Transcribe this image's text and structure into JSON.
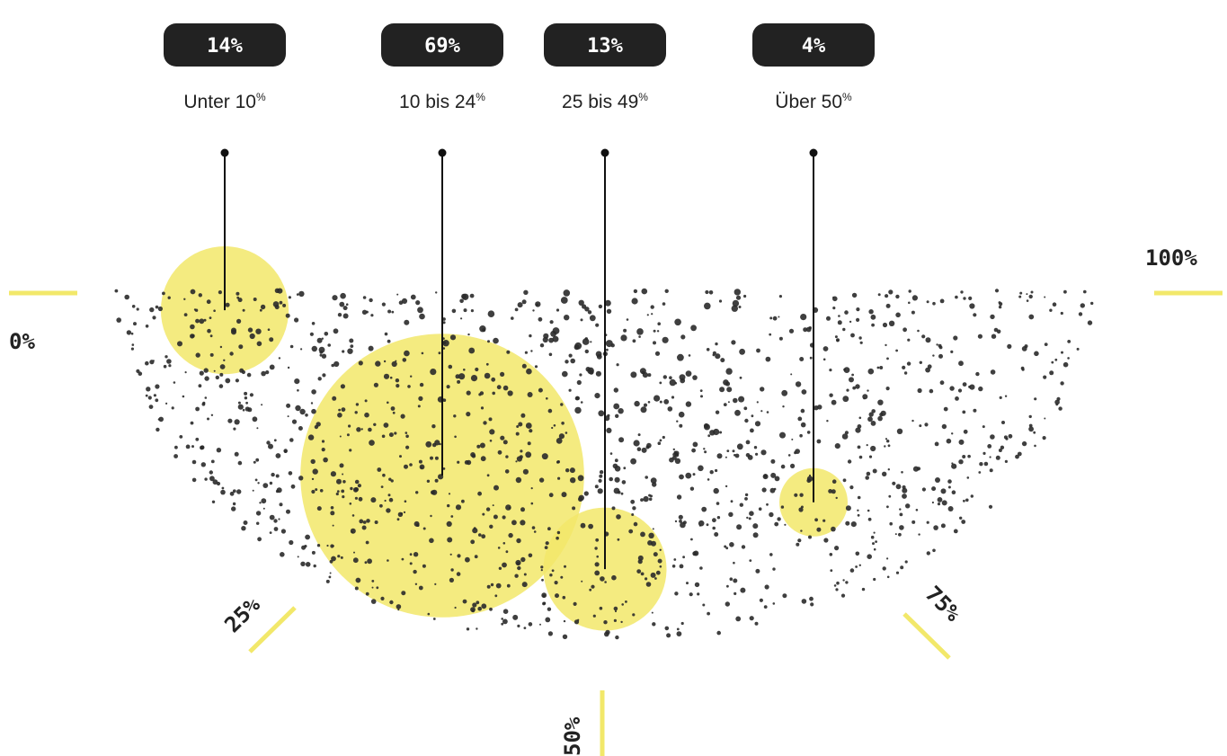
{
  "chart_data": {
    "type": "scatter",
    "description_scale": "semicircle gauge 0% to 100%",
    "scale_ticks": [
      {
        "value": 0,
        "label": "0%"
      },
      {
        "value": 25,
        "label": "25%"
      },
      {
        "value": 50,
        "label": "50%"
      },
      {
        "value": 75,
        "label": "75%"
      },
      {
        "value": 100,
        "label": "100%"
      }
    ],
    "categories": [
      {
        "share": "14%",
        "share_value": 14,
        "label": "Unter 10",
        "unit": "%",
        "gauge_position": 5
      },
      {
        "share": "69%",
        "share_value": 69,
        "label": "10 bis 24",
        "unit": "%",
        "gauge_position": 26
      },
      {
        "share": "13%",
        "share_value": 13,
        "label": "25 bis 49",
        "unit": "%",
        "gauge_position": 39
      },
      {
        "share": "4%",
        "share_value": 4,
        "label": "Über 50",
        "unit": "%",
        "gauge_position": 72
      }
    ],
    "colors": {
      "highlight": "#f2e86a",
      "dots": "#2a2a2a",
      "badge": "#222222",
      "tick": "#f2e86a"
    }
  }
}
